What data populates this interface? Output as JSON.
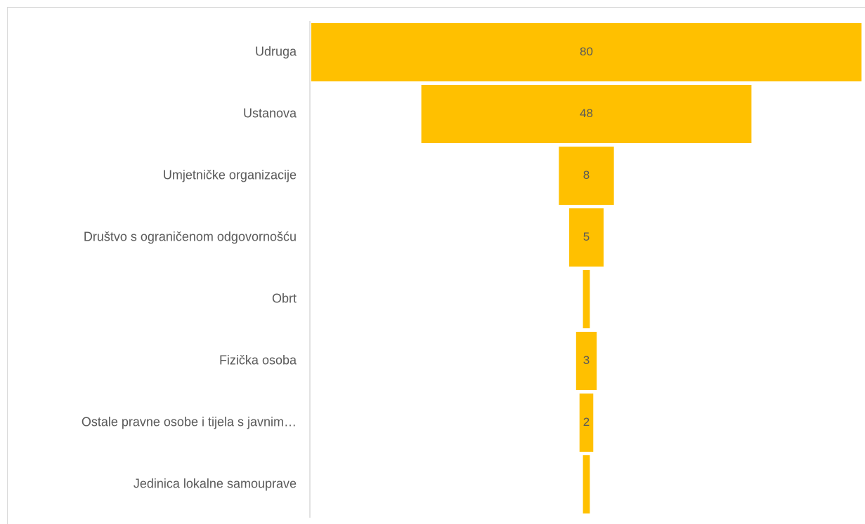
{
  "chart_data": {
    "type": "funnel",
    "categories": [
      "Udruga",
      "Ustanova",
      "Umjetničke organizacije",
      "Društvo s ograničenom odgovornošću",
      "Obrt",
      "Fizička osoba",
      "Ostale pravne osobe i tijela s javnim…",
      "Jedinica lokalne samouprave"
    ],
    "values": [
      80,
      48,
      8,
      5,
      1,
      3,
      2,
      1
    ],
    "value_labels": [
      "80",
      "48",
      "8",
      "5",
      null,
      "3",
      "2",
      null
    ],
    "color": "#ffc000"
  }
}
